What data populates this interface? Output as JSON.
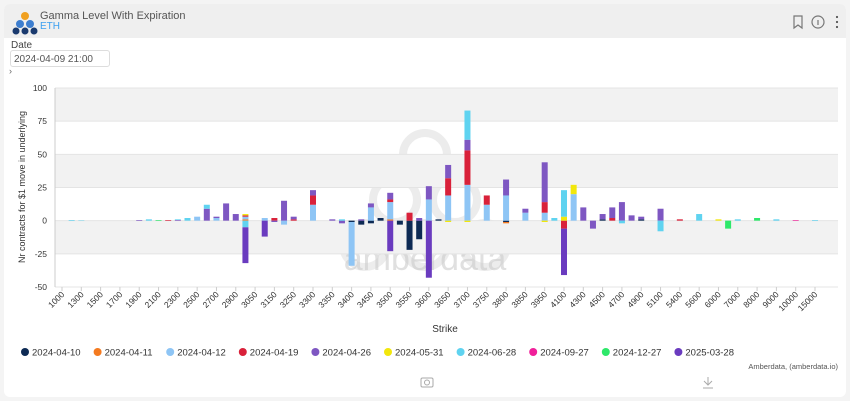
{
  "header": {
    "title": "Gamma Level With Expiration",
    "subtitle": "ETH"
  },
  "filter": {
    "label": "Date",
    "value": "2024-04-09 21:00"
  },
  "chart_data": {
    "type": "stacked-bar",
    "ylabel": "Nr contracts for $1 move in underlying",
    "xlabel": "Strike",
    "watermark": "amberdata",
    "credit": "Amberdata, (amberdata.io)",
    "ylim": [
      -50,
      100
    ],
    "yticks": [
      -50,
      -25,
      0,
      25,
      50,
      75,
      100
    ],
    "grid": true,
    "legend": "bottom",
    "categories": [
      "1000",
      null,
      "1300",
      null,
      "1500",
      null,
      "1700",
      null,
      "1900",
      null,
      "2100",
      null,
      "2300",
      null,
      "2500",
      null,
      "2700",
      null,
      "2900",
      null,
      "3050",
      null,
      "3150",
      null,
      "3250",
      null,
      "3300",
      null,
      "3350",
      null,
      "3400",
      null,
      "3450",
      null,
      "3500",
      null,
      "3550",
      null,
      "3600",
      null,
      "3650",
      null,
      "3700",
      null,
      "3750",
      null,
      "3800",
      null,
      "3850",
      null,
      "3950",
      null,
      "4100",
      null,
      "4300",
      null,
      "4500",
      null,
      "4700",
      null,
      "4900",
      null,
      "5100",
      null,
      "5400",
      null,
      "5600",
      null,
      "6000",
      null,
      "7000",
      null,
      "8000",
      null,
      "9000",
      null,
      "10000",
      null,
      "15000"
    ],
    "series": [
      {
        "name": "2024-04-10",
        "color": "#0d2a54",
        "values": [
          0,
          0,
          0,
          0,
          0,
          0,
          0,
          0,
          0,
          0,
          0,
          0,
          0,
          0,
          0,
          0,
          0,
          0,
          0,
          0,
          0,
          0,
          0,
          0,
          0,
          0,
          0,
          0,
          0,
          0,
          -1,
          -3,
          -2,
          2,
          0,
          -3,
          -22,
          -14,
          0,
          1,
          0,
          0,
          0,
          0,
          0,
          0,
          -1,
          0,
          0,
          0,
          0,
          0,
          0,
          0,
          0,
          0,
          1,
          0,
          0,
          0,
          1,
          0,
          0,
          0,
          0,
          0,
          0,
          0,
          0,
          0,
          0,
          0,
          0,
          0,
          0,
          0,
          0,
          0,
          0
        ]
      },
      {
        "name": "2024-04-11",
        "color": "#f47a20",
        "values": [
          0,
          0,
          0,
          0,
          0,
          0,
          0,
          0,
          0,
          0,
          0,
          0,
          0,
          0,
          0,
          0,
          0,
          0,
          0,
          1,
          0,
          0,
          0,
          0,
          0,
          0,
          0,
          0,
          0,
          0,
          0,
          0,
          0,
          0,
          1,
          0,
          0,
          0,
          0,
          0,
          0,
          0,
          0,
          0,
          0,
          0,
          -1,
          0,
          0,
          0,
          0,
          0,
          0,
          0,
          0,
          0,
          0,
          0,
          0,
          0,
          0,
          0,
          0,
          0,
          0,
          0,
          0,
          0,
          0,
          0,
          0,
          0,
          0,
          0,
          0,
          0,
          0,
          0,
          0
        ]
      },
      {
        "name": "2024-04-12",
        "color": "#8ec5f5",
        "values": [
          0,
          0,
          0,
          0,
          0,
          0,
          0,
          0,
          0,
          0,
          0,
          0,
          0,
          0,
          3,
          0,
          2,
          0,
          0,
          2,
          0,
          2,
          0,
          -3,
          0,
          0,
          12,
          0,
          0,
          0,
          -33,
          0,
          10,
          0,
          13,
          0,
          0,
          0,
          16,
          0,
          19,
          0,
          27,
          0,
          12,
          0,
          19,
          0,
          6,
          0,
          6,
          0,
          0,
          20,
          0,
          0,
          0,
          0,
          0,
          0,
          0,
          0,
          0,
          0,
          0,
          0,
          0,
          0,
          0,
          0,
          0,
          0,
          0,
          0,
          0,
          0,
          0,
          0,
          0
        ]
      },
      {
        "name": "2024-04-19",
        "color": "#d9213a",
        "values": [
          0,
          0,
          0,
          0,
          0,
          0,
          0,
          0,
          0,
          0,
          0,
          0.5,
          0,
          0,
          0,
          0,
          0,
          0,
          0,
          1,
          0,
          0,
          2,
          0,
          1,
          0,
          7,
          0,
          0,
          0,
          0,
          0,
          0,
          0,
          2,
          0,
          6,
          0,
          0,
          0,
          13,
          0,
          26,
          0,
          7,
          0,
          0,
          0,
          0,
          0,
          8,
          0,
          -6,
          0,
          0,
          0,
          0,
          2,
          0,
          0,
          0,
          0,
          0,
          0,
          1,
          0,
          0,
          0,
          0,
          0,
          0,
          0,
          0,
          0,
          0,
          0,
          0,
          0,
          0
        ]
      },
      {
        "name": "2024-04-26",
        "color": "#7e57c2",
        "values": [
          0,
          0,
          0,
          0,
          0,
          0,
          0,
          0,
          0.5,
          0,
          0,
          0,
          0.5,
          0,
          0,
          9,
          1,
          13,
          5,
          0,
          0,
          0,
          -1,
          15,
          2,
          0,
          4,
          0,
          1,
          -2,
          0,
          1,
          3,
          0,
          5,
          0,
          0,
          2,
          10,
          0,
          10,
          0,
          8,
          0,
          0,
          0,
          12,
          0,
          3,
          0,
          30,
          0,
          0,
          0,
          10,
          -6,
          4,
          8,
          14,
          4,
          2,
          0,
          9,
          0,
          0,
          0,
          0,
          0,
          0,
          0,
          0,
          0,
          0,
          0,
          0,
          0,
          0,
          0,
          0
        ]
      },
      {
        "name": "2024-05-31",
        "color": "#f2e70c",
        "values": [
          0,
          0,
          0,
          0,
          0,
          0,
          0,
          0,
          0,
          0,
          0,
          0,
          0,
          0,
          0,
          0,
          0,
          0,
          0,
          1,
          0,
          0,
          0,
          0,
          0,
          0,
          0,
          0,
          0,
          0,
          0,
          0,
          0,
          0,
          0,
          0,
          0,
          0,
          0,
          0,
          -1,
          0,
          -1,
          0,
          0,
          0,
          0,
          0,
          0,
          0,
          -1,
          0,
          3,
          7,
          0,
          0,
          0,
          0,
          0,
          0,
          0,
          0,
          0,
          0,
          0,
          0,
          0,
          0,
          1,
          0,
          0,
          0,
          0,
          0,
          0,
          0,
          0,
          0,
          0
        ]
      },
      {
        "name": "2024-06-28",
        "color": "#5fd3f0",
        "values": [
          0,
          0.5,
          0.3,
          0,
          0,
          0,
          0,
          0,
          0,
          1,
          0,
          0,
          0.5,
          2,
          0,
          3,
          0,
          0,
          0,
          -5,
          0,
          0,
          0,
          0,
          0,
          0,
          0,
          0,
          0,
          1,
          0,
          0,
          0,
          0,
          0,
          0,
          0,
          0,
          0,
          0,
          0,
          0,
          22,
          0,
          0,
          0,
          0,
          0,
          0,
          0,
          0,
          2,
          20,
          0,
          0,
          0,
          0,
          0,
          -2,
          0,
          0,
          0,
          -8,
          0,
          0,
          0,
          5,
          0,
          0,
          0,
          1,
          0,
          0,
          0,
          1,
          0,
          0,
          0,
          0.5
        ]
      },
      {
        "name": "2024-09-27",
        "color": "#f0209a",
        "values": [
          0,
          0,
          0,
          0,
          0,
          0,
          0,
          0,
          0,
          0,
          0,
          0,
          0,
          0,
          0,
          0,
          0,
          0,
          0,
          0,
          0,
          0,
          0,
          0,
          0,
          0,
          0,
          0,
          0,
          0,
          0,
          0,
          0,
          0,
          0,
          0,
          0,
          0,
          0,
          0,
          0,
          0,
          0,
          0,
          0,
          0,
          0,
          0,
          0,
          0,
          0,
          0,
          0,
          0,
          0,
          0,
          0,
          0,
          0,
          0,
          0,
          0,
          0,
          0,
          0,
          0,
          0,
          0,
          0,
          0,
          0,
          0,
          0,
          0,
          0,
          0,
          0.5,
          0,
          0
        ]
      },
      {
        "name": "2024-12-27",
        "color": "#2ee86a",
        "values": [
          0,
          0,
          0,
          0,
          0,
          0,
          0,
          0,
          0,
          0,
          0.5,
          0,
          0,
          0,
          0,
          0,
          0,
          0,
          0,
          0,
          0,
          0,
          0,
          0,
          0,
          0,
          0,
          0,
          0,
          0,
          0,
          0,
          0,
          0,
          0,
          0,
          0,
          0,
          0,
          0,
          0,
          0,
          0,
          0,
          0,
          0,
          0,
          0,
          0,
          0,
          0,
          0,
          0,
          0,
          0,
          0,
          0,
          0,
          0,
          0,
          0,
          0,
          0,
          0,
          0,
          0,
          0,
          0,
          0,
          -6,
          0,
          0,
          2,
          0,
          0,
          0,
          0,
          0,
          0
        ]
      },
      {
        "name": "2025-03-28",
        "color": "#6a3bbf",
        "values": [
          0,
          0,
          0,
          0,
          0,
          0,
          0,
          0,
          0,
          0,
          0,
          0,
          0,
          0,
          0,
          0,
          0,
          0,
          0,
          -27,
          0,
          -12,
          0,
          0,
          0,
          0,
          0,
          0,
          0,
          0,
          0,
          0,
          0,
          0,
          -23,
          0,
          0,
          0,
          -43,
          0,
          0,
          0,
          0,
          0,
          0,
          0,
          0,
          0,
          0,
          0,
          0,
          0,
          -35,
          0,
          0,
          0,
          0,
          0,
          0,
          0,
          0,
          0,
          0,
          0,
          0,
          0,
          0,
          0,
          0,
          0,
          0,
          0,
          0,
          0,
          0,
          0,
          0,
          0,
          0
        ]
      }
    ]
  }
}
